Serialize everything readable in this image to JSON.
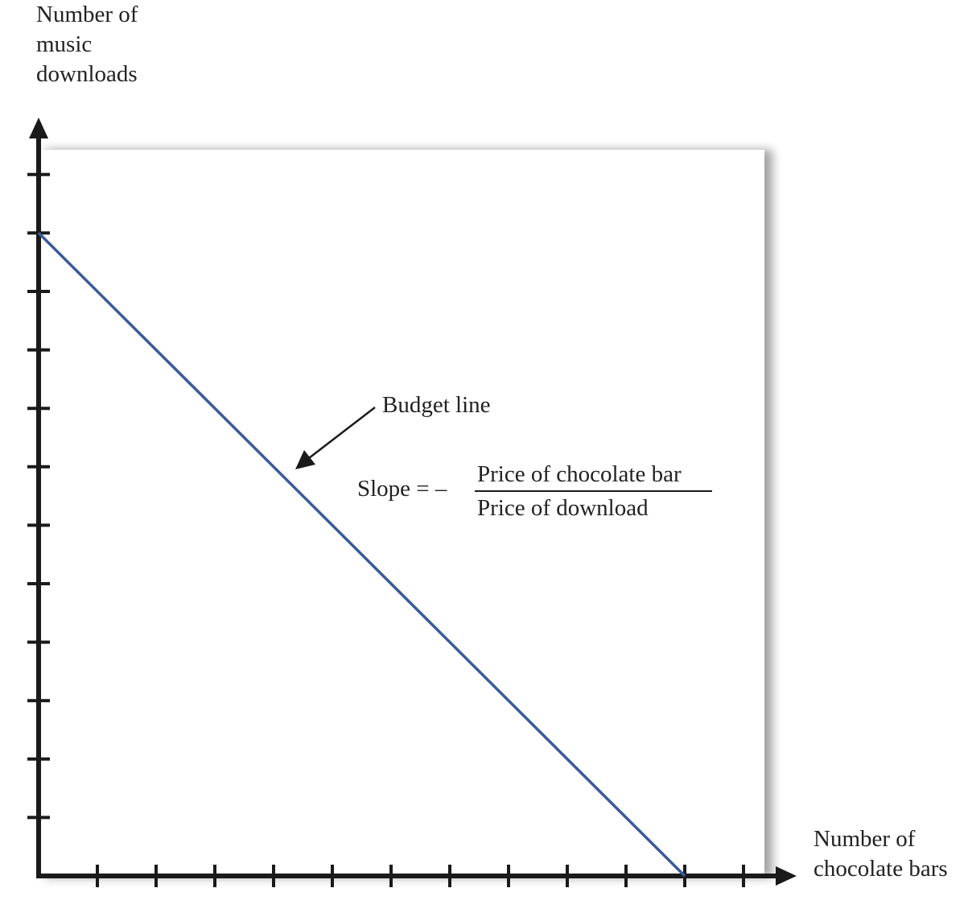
{
  "chart_data": {
    "type": "line",
    "title": "",
    "ylabel_lines": [
      "Number of",
      "music",
      "downloads"
    ],
    "xlabel_lines": [
      "Number of",
      "chocolate bars"
    ],
    "xlim": [
      0,
      12
    ],
    "ylim": [
      0,
      12
    ],
    "x_ticks": [
      1,
      2,
      3,
      4,
      5,
      6,
      7,
      8,
      9,
      10,
      11,
      12
    ],
    "y_ticks": [
      1,
      2,
      3,
      4,
      5,
      6,
      7,
      8,
      9,
      10,
      11,
      12
    ],
    "tick_labels": false,
    "grid": false,
    "series": [
      {
        "x": [
          0,
          11
        ],
        "y": [
          11,
          0
        ]
      }
    ],
    "annotations": {
      "budget_line": "Budget line",
      "slope_prefix": "Slope = –",
      "slope_numerator": "Price of chocolate bar",
      "slope_denominator": "Price of download"
    },
    "colors": {
      "line": "#3a5a99",
      "axis": "#1a1a1a",
      "text": "#222222",
      "panel_shadow": "#666666"
    }
  }
}
